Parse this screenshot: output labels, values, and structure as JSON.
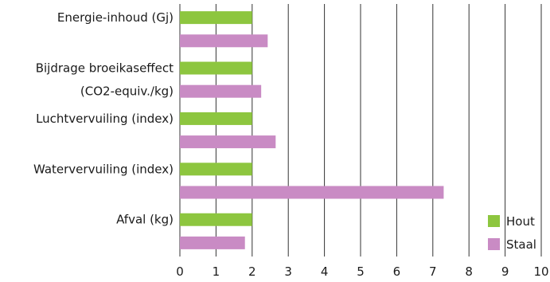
{
  "chart_data": {
    "type": "bar",
    "orientation": "horizontal",
    "categories": [
      [
        "Energie-inhoud (Gj)"
      ],
      [
        "Bijdrage broeikaseffect",
        "(CO2-equiv./kg)"
      ],
      [
        "Luchtvervuiling (index)"
      ],
      [
        "Watervervuiling (index)"
      ],
      [
        "Afval (kg)"
      ]
    ],
    "series": [
      {
        "name": "Hout",
        "color": "#8dc63f",
        "values": [
          2,
          2,
          2,
          2,
          2
        ]
      },
      {
        "name": "Staal",
        "color": "#c98bc4",
        "values": [
          2.43,
          2.25,
          2.65,
          7.3,
          1.8
        ]
      }
    ],
    "xlim": [
      0,
      10
    ],
    "xticks": [
      "0",
      "1",
      "2",
      "3",
      "4",
      "5",
      "6",
      "7",
      "8",
      "9",
      "10"
    ],
    "grid": "vertical",
    "legend": "bottom-right"
  }
}
